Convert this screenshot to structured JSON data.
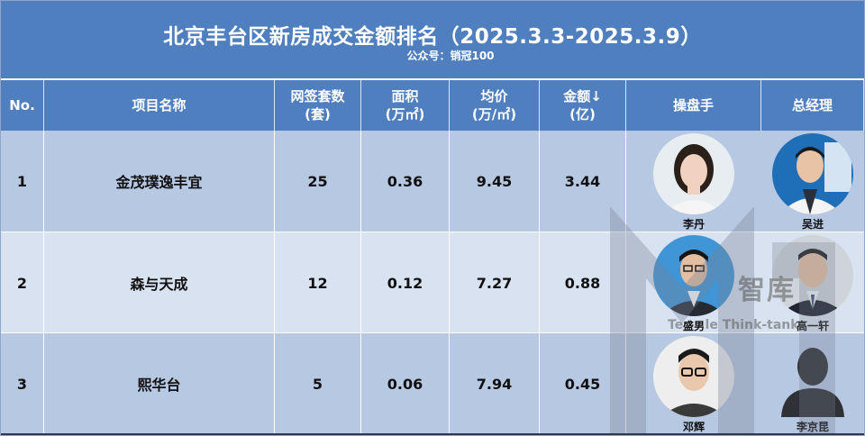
{
  "title": "北京丰台区新房成交金额排名（2025.3.3-2025.3.9）",
  "subtitle": "公众号：销冠100",
  "headers": {
    "no": "No.",
    "project": "项目名称",
    "units_line1": "网签套数",
    "units_line2": "(套)",
    "area_line1": "面积",
    "area_line2": "(万㎡)",
    "price_line1": "均价",
    "price_line2": "(万/㎡)",
    "amount_line1": "金额↓",
    "amount_line2": "(亿)",
    "operator": "操盘手",
    "gm": "总经理"
  },
  "rows": [
    {
      "no": "1",
      "project": "金茂璞逸丰宜",
      "units": "25",
      "area": "0.36",
      "price": "9.45",
      "amount": "3.44",
      "operator": "李丹",
      "gm": "吴进"
    },
    {
      "no": "2",
      "project": "森与天成",
      "units": "12",
      "area": "0.12",
      "price": "7.27",
      "amount": "0.88",
      "operator": "盛男",
      "gm": "高一轩"
    },
    {
      "no": "3",
      "project": "熙华台",
      "units": "5",
      "area": "0.06",
      "price": "7.94",
      "amount": "0.45",
      "operator": "邓辉",
      "gm": "李京昆"
    }
  ],
  "watermark": {
    "text": "智库",
    "subtext": "Te     le Think-tank"
  },
  "colors": {
    "header_bg": "#4f7fbf",
    "row_dark": "#b7c8e3",
    "row_light": "#d8e2f1"
  }
}
